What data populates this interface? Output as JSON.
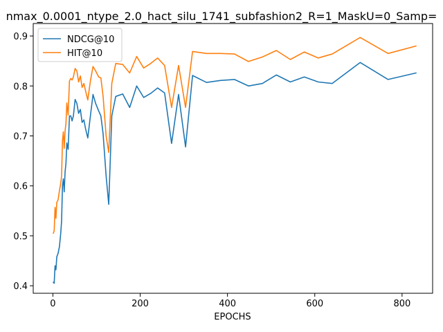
{
  "chart_data": {
    "type": "line",
    "title": "nmax_0.0001_ntype_2.0_hact_silu_1741_subfashion2_R=1_MaskU=0_Samp=",
    "xlabel": "EPOCHS",
    "ylabel": "",
    "xlim": [
      -45,
      870
    ],
    "ylim": [
      0.385,
      0.925
    ],
    "xticks": [
      0,
      200,
      400,
      600,
      800
    ],
    "yticks": [
      0.4,
      0.5,
      0.6,
      0.7,
      0.8,
      0.9
    ],
    "grid": false,
    "legend_position": "top-left",
    "series": [
      {
        "name": "NDCG@10",
        "color": "#1f77b4",
        "points": [
          [
            1,
            0.407
          ],
          [
            3,
            0.405
          ],
          [
            5,
            0.44
          ],
          [
            7,
            0.432
          ],
          [
            9,
            0.458
          ],
          [
            12,
            0.465
          ],
          [
            15,
            0.478
          ],
          [
            18,
            0.505
          ],
          [
            20,
            0.53
          ],
          [
            22,
            0.6
          ],
          [
            24,
            0.614
          ],
          [
            26,
            0.588
          ],
          [
            28,
            0.628
          ],
          [
            30,
            0.645
          ],
          [
            32,
            0.686
          ],
          [
            35,
            0.673
          ],
          [
            38,
            0.74
          ],
          [
            41,
            0.74
          ],
          [
            44,
            0.73
          ],
          [
            47,
            0.74
          ],
          [
            51,
            0.773
          ],
          [
            55,
            0.765
          ],
          [
            59,
            0.745
          ],
          [
            63,
            0.753
          ],
          [
            67,
            0.727
          ],
          [
            71,
            0.732
          ],
          [
            75,
            0.714
          ],
          [
            80,
            0.696
          ],
          [
            86,
            0.74
          ],
          [
            92,
            0.783
          ],
          [
            98,
            0.765
          ],
          [
            105,
            0.75
          ],
          [
            110,
            0.74
          ],
          [
            115,
            0.705
          ],
          [
            122,
            0.62
          ],
          [
            128,
            0.563
          ],
          [
            135,
            0.74
          ],
          [
            144,
            0.779
          ],
          [
            160,
            0.784
          ],
          [
            176,
            0.757
          ],
          [
            192,
            0.8
          ],
          [
            208,
            0.777
          ],
          [
            224,
            0.785
          ],
          [
            240,
            0.796
          ],
          [
            256,
            0.786
          ],
          [
            272,
            0.685
          ],
          [
            288,
            0.783
          ],
          [
            304,
            0.678
          ],
          [
            320,
            0.821
          ],
          [
            352,
            0.807
          ],
          [
            384,
            0.811
          ],
          [
            416,
            0.813
          ],
          [
            448,
            0.8
          ],
          [
            480,
            0.805
          ],
          [
            512,
            0.822
          ],
          [
            544,
            0.808
          ],
          [
            576,
            0.818
          ],
          [
            608,
            0.808
          ],
          [
            640,
            0.805
          ],
          [
            704,
            0.847
          ],
          [
            768,
            0.813
          ],
          [
            832,
            0.826
          ]
        ]
      },
      {
        "name": "HIT@10",
        "color": "#ff7f0e",
        "points": [
          [
            1,
            0.505
          ],
          [
            3,
            0.51
          ],
          [
            5,
            0.557
          ],
          [
            7,
            0.535
          ],
          [
            9,
            0.567
          ],
          [
            12,
            0.572
          ],
          [
            15,
            0.59
          ],
          [
            18,
            0.605
          ],
          [
            20,
            0.62
          ],
          [
            22,
            0.69
          ],
          [
            24,
            0.708
          ],
          [
            26,
            0.675
          ],
          [
            28,
            0.71
          ],
          [
            30,
            0.725
          ],
          [
            32,
            0.766
          ],
          [
            35,
            0.742
          ],
          [
            38,
            0.81
          ],
          [
            41,
            0.815
          ],
          [
            44,
            0.812
          ],
          [
            47,
            0.818
          ],
          [
            51,
            0.835
          ],
          [
            55,
            0.83
          ],
          [
            59,
            0.808
          ],
          [
            63,
            0.82
          ],
          [
            67,
            0.797
          ],
          [
            71,
            0.805
          ],
          [
            75,
            0.79
          ],
          [
            80,
            0.772
          ],
          [
            86,
            0.81
          ],
          [
            92,
            0.839
          ],
          [
            98,
            0.83
          ],
          [
            105,
            0.818
          ],
          [
            110,
            0.816
          ],
          [
            115,
            0.78
          ],
          [
            122,
            0.7
          ],
          [
            128,
            0.667
          ],
          [
            135,
            0.805
          ],
          [
            144,
            0.845
          ],
          [
            160,
            0.843
          ],
          [
            176,
            0.826
          ],
          [
            192,
            0.859
          ],
          [
            208,
            0.836
          ],
          [
            224,
            0.845
          ],
          [
            240,
            0.856
          ],
          [
            256,
            0.841
          ],
          [
            272,
            0.757
          ],
          [
            288,
            0.841
          ],
          [
            304,
            0.757
          ],
          [
            320,
            0.869
          ],
          [
            352,
            0.865
          ],
          [
            384,
            0.865
          ],
          [
            416,
            0.864
          ],
          [
            448,
            0.849
          ],
          [
            480,
            0.858
          ],
          [
            512,
            0.871
          ],
          [
            544,
            0.853
          ],
          [
            576,
            0.868
          ],
          [
            608,
            0.856
          ],
          [
            640,
            0.864
          ],
          [
            704,
            0.897
          ],
          [
            768,
            0.865
          ],
          [
            832,
            0.88
          ]
        ]
      }
    ]
  }
}
